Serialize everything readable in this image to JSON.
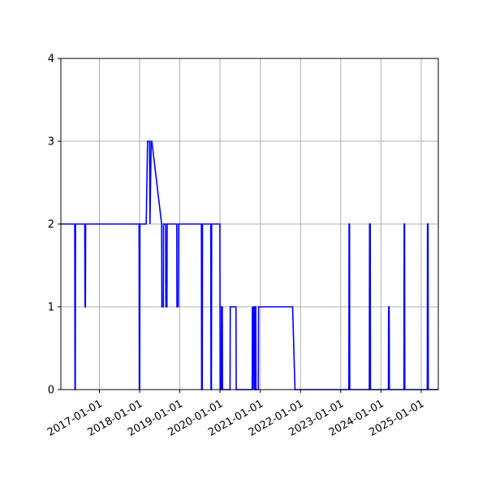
{
  "chart_data": {
    "type": "line",
    "title": "",
    "xlabel": "",
    "ylabel": "",
    "x_axis_type": "date",
    "xlim": [
      "2016-01-17",
      "2025-06-05"
    ],
    "ylim": [
      0,
      4
    ],
    "x_ticks": [
      "2017-01-01",
      "2018-01-01",
      "2019-01-01",
      "2020-01-01",
      "2021-01-01",
      "2022-01-01",
      "2023-01-01",
      "2024-01-01",
      "2025-01-01"
    ],
    "x_tick_labels": [
      "2017-01-01",
      "2018-01-01",
      "2019-01-01",
      "2020-01-01",
      "2021-01-01",
      "2022-01-01",
      "2023-01-01",
      "2024-01-01",
      "2025-01-01"
    ],
    "y_ticks": [
      0,
      1,
      2,
      3,
      4
    ],
    "y_tick_labels": [
      "0",
      "1",
      "2",
      "3",
      "4"
    ],
    "grid": true,
    "legend": false,
    "colors": {
      "line": "#0000ff",
      "grid": "#b0b0b0",
      "axis": "#000000"
    },
    "series": [
      {
        "x": [
          "2016-01-17",
          "2016-05-22",
          "2016-05-24",
          "2016-05-27",
          "2016-05-29",
          "2016-08-21",
          "2016-08-23",
          "2016-08-27",
          "2016-08-29",
          "2017-12-27",
          "2017-12-29",
          "2018-01-02",
          "2018-01-04",
          "2018-03-02",
          "2018-03-14",
          "2018-03-16",
          "2018-04-01",
          "2018-04-05",
          "2018-04-16",
          "2018-04-22",
          "2018-07-20",
          "2018-07-22",
          "2018-08-04",
          "2018-08-06",
          "2018-08-25",
          "2018-08-27",
          "2018-09-06",
          "2018-09-08",
          "2018-12-04",
          "2018-12-06",
          "2018-12-18",
          "2018-12-20",
          "2019-07-16",
          "2019-07-18",
          "2019-07-24",
          "2019-07-26",
          "2019-10-09",
          "2019-10-11",
          "2019-10-15",
          "2019-10-17",
          "2019-12-31",
          "2020-01-02",
          "2020-01-13",
          "2020-01-15",
          "2020-01-22",
          "2020-01-24",
          "2020-04-01",
          "2020-04-03",
          "2020-05-25",
          "2020-05-27",
          "2020-10-19",
          "2020-10-21",
          "2020-10-27",
          "2020-10-29",
          "2020-11-07",
          "2020-11-09",
          "2020-11-13",
          "2020-11-15",
          "2020-11-21",
          "2020-11-23",
          "2020-12-14",
          "2020-12-16",
          "2020-12-26",
          "2020-12-28",
          "2021-10-21",
          "2021-11-12",
          "2023-03-16",
          "2023-03-18",
          "2023-03-22",
          "2023-03-24",
          "2023-09-18",
          "2023-09-20",
          "2023-09-26",
          "2023-09-28",
          "2024-03-09",
          "2024-03-11",
          "2024-03-16",
          "2024-03-18",
          "2024-07-28",
          "2024-07-30",
          "2024-08-03",
          "2024-08-05",
          "2025-02-25",
          "2025-02-27",
          "2025-03-04",
          "2025-03-06",
          "2025-06-05"
        ],
        "y": [
          2,
          2,
          0,
          0,
          2,
          2,
          1,
          1,
          2,
          2,
          0,
          0,
          2,
          2,
          3,
          3,
          3,
          2,
          3,
          3,
          2,
          1,
          1,
          2,
          2,
          1,
          1,
          2,
          2,
          1,
          1,
          2,
          2,
          0,
          0,
          2,
          2,
          0,
          0,
          2,
          2,
          0,
          0,
          1,
          1,
          0,
          0,
          1,
          1,
          0,
          0,
          1,
          0,
          1,
          1,
          0,
          0,
          1,
          1,
          0,
          0,
          1,
          1,
          1,
          1,
          0,
          0,
          2,
          2,
          0,
          0,
          2,
          2,
          0,
          0,
          1,
          1,
          0,
          0,
          2,
          2,
          0,
          0,
          2,
          2,
          0,
          0
        ]
      }
    ]
  }
}
